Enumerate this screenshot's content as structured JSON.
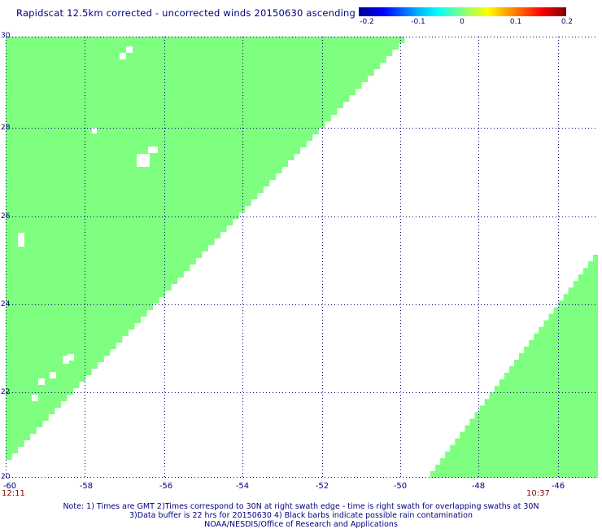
{
  "title": "Rapidscat 12.5km corrected - uncorrected winds 20150630 ascending",
  "colorbar": {
    "labels": [
      "-0.2",
      "-0.1",
      "0",
      "0.1",
      "0.2"
    ],
    "colors": [
      "#000090",
      "#0000ff",
      "#00ffff",
      "#7fff7f",
      "#ffff00",
      "#ff0000",
      "#800000"
    ]
  },
  "map": {
    "lon_range": [
      -60,
      -45.1
    ],
    "lat_range": [
      20,
      30
    ],
    "x_ticks": [
      "-60",
      "-58",
      "-56",
      "-54",
      "-52",
      "-50",
      "-48",
      "-46"
    ],
    "y_ticks": [
      "30",
      "28",
      "26",
      "24",
      "22",
      "20"
    ],
    "swath_color": "#7fff7f",
    "grid_color": "#000080",
    "grid_style": "dotted"
  },
  "times": {
    "left": "12:11",
    "right": "10:37"
  },
  "footer": {
    "line1": "Note: 1) Times are GMT 2)Times correspond to 30N at right swath edge - time is right swath for overlapping swaths at 30N",
    "line2": "3)Data buffer is 22 hrs for 20150630 4) Black barbs indicate possible rain contamination",
    "line3": "NOAA/NESDIS/Office of Research and Applications"
  }
}
